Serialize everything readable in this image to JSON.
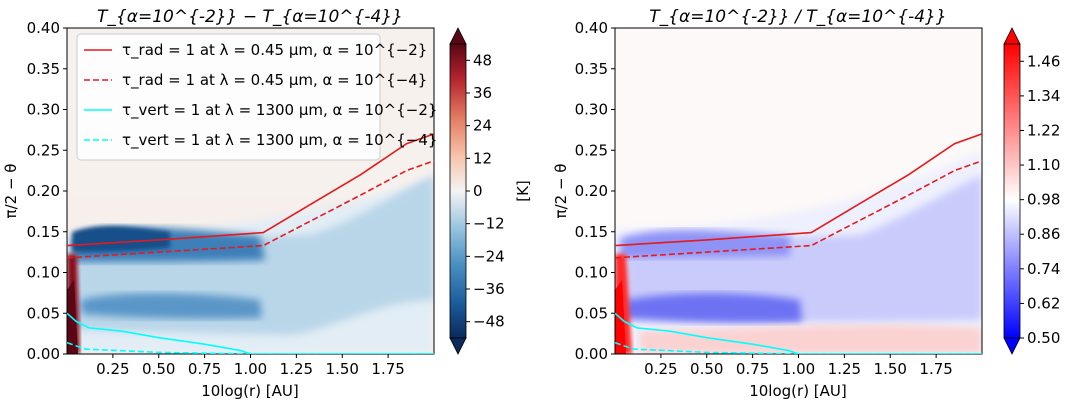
{
  "chart_data": [
    {
      "type": "heatmap",
      "title": "T_{α=10^{-2}} − T_{α=10^{-4}}",
      "xlabel": "10log(r) [AU]",
      "ylabel": "π/2 − θ",
      "xlim": [
        0.0,
        2.0
      ],
      "ylim": [
        0.0,
        0.4
      ],
      "xticks": [
        "0.25",
        "0.50",
        "0.75",
        "1.00",
        "1.25",
        "1.50",
        "1.75"
      ],
      "xtick_values": [
        0.25,
        0.5,
        0.75,
        1.0,
        1.25,
        1.5,
        1.75
      ],
      "yticks": [
        "0.00",
        "0.05",
        "0.10",
        "0.15",
        "0.20",
        "0.25",
        "0.30",
        "0.35",
        "0.40"
      ],
      "ytick_values": [
        0.0,
        0.05,
        0.1,
        0.15,
        0.2,
        0.25,
        0.3,
        0.35,
        0.4
      ],
      "colorbar": {
        "label": "[K]",
        "colormap": "RdBu_r",
        "range": [
          -54,
          54
        ],
        "ticks": [
          "48",
          "36",
          "24",
          "12",
          "0",
          "−12",
          "−24",
          "−36",
          "−48"
        ],
        "tick_values": [
          48,
          36,
          24,
          12,
          0,
          -12,
          -24,
          -36,
          -48
        ],
        "extend": "both"
      },
      "legend": {
        "placement": "upper-left",
        "entries": [
          {
            "label": "τ_rad = 1 at λ = 0.45 μm, α = 10^{−2}",
            "color": "#e41a1c",
            "style": "solid"
          },
          {
            "label": "τ_rad = 1 at λ = 0.45 μm, α = 10^{−4}",
            "color": "#e41a1c",
            "style": "dashed"
          },
          {
            "label": "τ_vert = 1 at λ = 1300 μm, α = 10^{−2}",
            "color": "#00ffff",
            "style": "solid"
          },
          {
            "label": "τ_vert = 1 at λ = 1300 μm, α = 10^{−4}",
            "color": "#00ffff",
            "style": "dashed"
          }
        ]
      },
      "series": [
        {
          "color": "#e41a1c",
          "style": "solid",
          "x": [
            0.0,
            0.5,
            1.07,
            1.3,
            1.6,
            1.85,
            2.0
          ],
          "y": [
            0.133,
            0.14,
            0.149,
            0.18,
            0.22,
            0.258,
            0.27
          ]
        },
        {
          "color": "#e41a1c",
          "style": "dashed",
          "x": [
            0.0,
            0.5,
            1.07,
            1.3,
            1.6,
            1.85,
            2.0
          ],
          "y": [
            0.118,
            0.125,
            0.133,
            0.16,
            0.195,
            0.225,
            0.237
          ]
        },
        {
          "color": "#00ffff",
          "style": "solid",
          "x": [
            0.0,
            0.05,
            0.12,
            0.3,
            0.5,
            0.75,
            0.95,
            1.0,
            2.0
          ],
          "y": [
            0.05,
            0.04,
            0.032,
            0.028,
            0.02,
            0.012,
            0.004,
            0.0,
            0.0
          ]
        },
        {
          "color": "#00ffff",
          "style": "dashed",
          "x": [
            0.0,
            0.1,
            0.3,
            0.5,
            0.75,
            1.0,
            2.0
          ],
          "y": [
            0.014,
            0.006,
            0.004,
            0.002,
            0.001,
            0.0,
            0.0
          ]
        }
      ]
    },
    {
      "type": "heatmap",
      "title": "T_{α=10^{-2}} / T_{α=10^{-4}}",
      "xlabel": "10log(r) [AU]",
      "ylabel": "π/2 − θ",
      "xlim": [
        0.0,
        2.0
      ],
      "ylim": [
        0.0,
        0.4
      ],
      "xticks": [
        "0.25",
        "0.50",
        "0.75",
        "1.00",
        "1.25",
        "1.50",
        "1.75"
      ],
      "xtick_values": [
        0.25,
        0.5,
        0.75,
        1.0,
        1.25,
        1.5,
        1.75
      ],
      "yticks": [
        "0.00",
        "0.05",
        "0.10",
        "0.15",
        "0.20",
        "0.25",
        "0.30",
        "0.35",
        "0.40"
      ],
      "ytick_values": [
        0.0,
        0.05,
        0.1,
        0.15,
        0.2,
        0.25,
        0.3,
        0.35,
        0.4
      ],
      "colorbar": {
        "label": "",
        "colormap": "bwr",
        "range": [
          0.5,
          1.52
        ],
        "ticks": [
          "1.46",
          "1.34",
          "1.22",
          "1.10",
          "0.98",
          "0.86",
          "0.74",
          "0.62",
          "0.50"
        ],
        "tick_values": [
          1.46,
          1.34,
          1.22,
          1.1,
          0.98,
          0.86,
          0.74,
          0.62,
          0.5
        ],
        "extend": "both"
      },
      "series": [
        {
          "color": "#e41a1c",
          "style": "solid",
          "x": [
            0.0,
            0.5,
            1.07,
            1.3,
            1.6,
            1.85,
            2.0
          ],
          "y": [
            0.133,
            0.14,
            0.149,
            0.18,
            0.22,
            0.258,
            0.27
          ]
        },
        {
          "color": "#e41a1c",
          "style": "dashed",
          "x": [
            0.0,
            0.5,
            1.07,
            1.3,
            1.6,
            1.85,
            2.0
          ],
          "y": [
            0.118,
            0.125,
            0.133,
            0.16,
            0.195,
            0.225,
            0.237
          ]
        },
        {
          "color": "#00ffff",
          "style": "solid",
          "x": [
            0.0,
            0.05,
            0.12,
            0.3,
            0.5,
            0.75,
            0.95,
            1.0,
            2.0
          ],
          "y": [
            0.05,
            0.04,
            0.032,
            0.028,
            0.02,
            0.012,
            0.004,
            0.0,
            0.0
          ]
        },
        {
          "color": "#00ffff",
          "style": "dashed",
          "x": [
            0.0,
            0.1,
            0.3,
            0.5,
            0.75,
            1.0,
            2.0
          ],
          "y": [
            0.014,
            0.006,
            0.004,
            0.002,
            0.001,
            0.0,
            0.0
          ]
        }
      ]
    }
  ]
}
